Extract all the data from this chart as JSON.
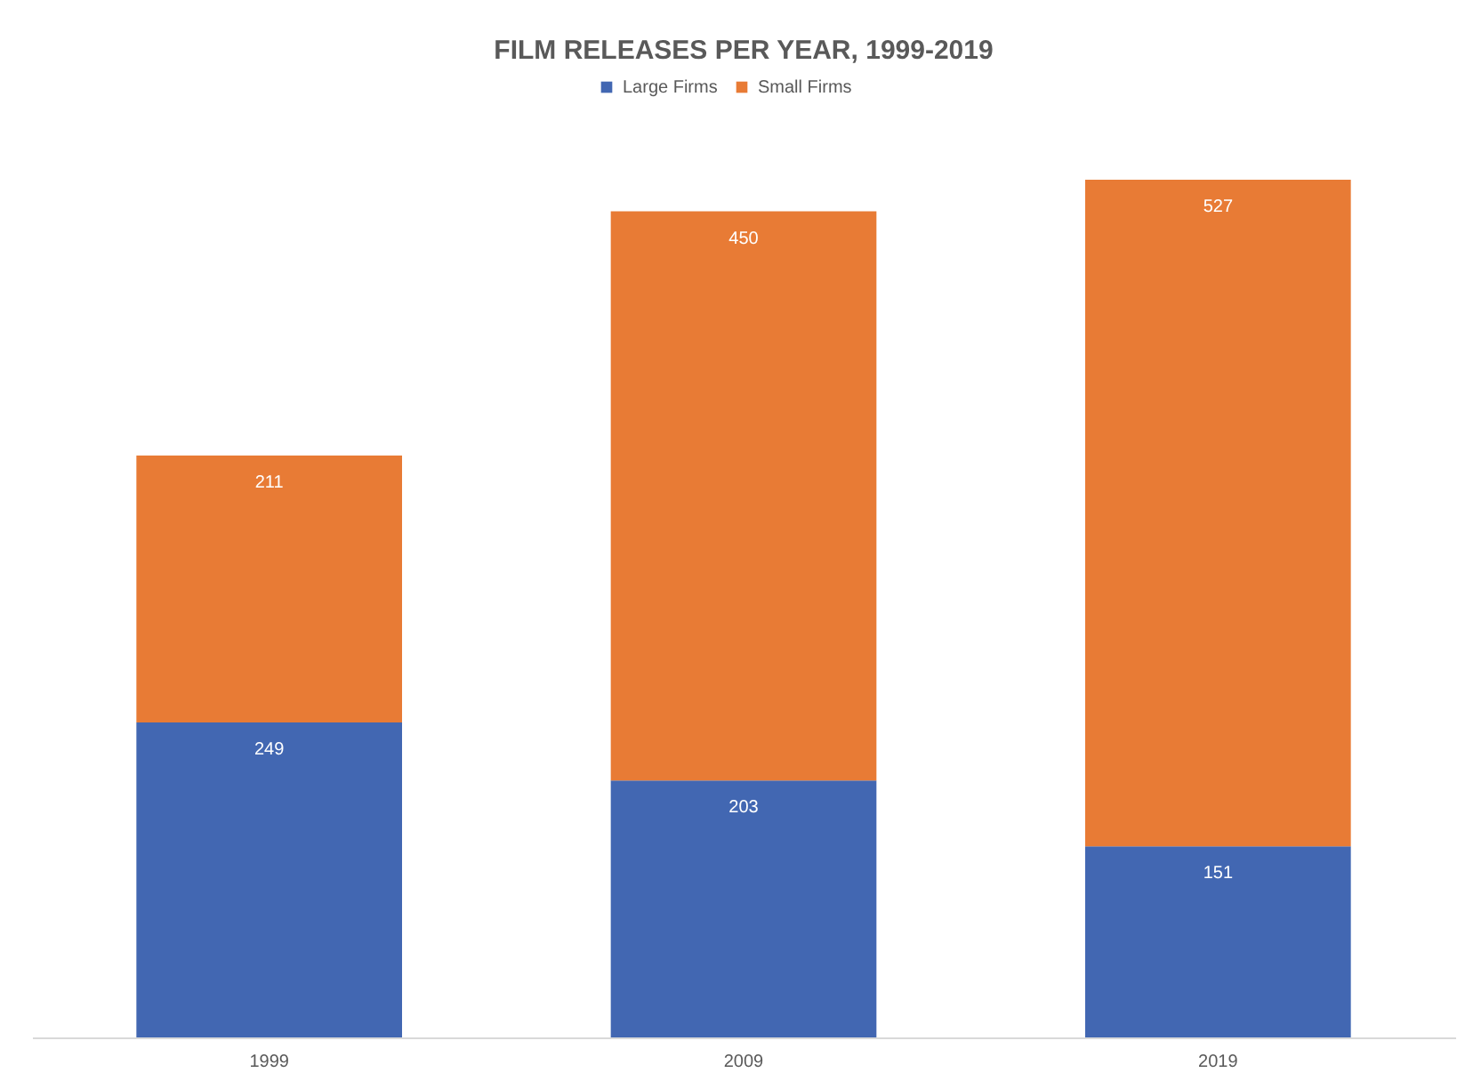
{
  "chart_data": {
    "type": "bar",
    "title": "FILM RELEASES PER YEAR, 1999-2019",
    "categories": [
      "1999",
      "2009",
      "2019"
    ],
    "stacked": true,
    "data_labels": true,
    "legend": "top",
    "grid": false,
    "series": [
      {
        "name": "Large Firms",
        "color": "#4267b2",
        "values": [
          249,
          203,
          151
        ]
      },
      {
        "name": "Small Firms",
        "color": "#e87b35",
        "values": [
          211,
          450,
          527
        ]
      }
    ]
  }
}
